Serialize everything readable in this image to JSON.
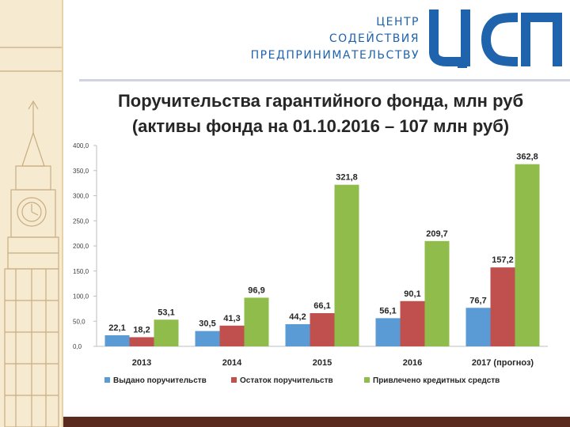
{
  "logo": {
    "line1": "ЦЕНТР",
    "line2": "СОДЕЙСТВИЯ",
    "line3": "ПРЕДПРИНИМАТЕЛЬСТВУ",
    "mark": "ЦСП"
  },
  "title": {
    "line1": "Поручительства гарантийного фонда, млн руб",
    "line2": "(активы фонда на 01.10.2016 – 107 млн руб)"
  },
  "colors": {
    "series1": "#5b9bd5",
    "series2": "#c0504d",
    "series3": "#8fbc4b",
    "brand": "#1f63ad"
  },
  "chart_data": {
    "type": "bar",
    "categories": [
      "2013",
      "2014",
      "2015",
      "2016",
      "2017 (прогноз)"
    ],
    "series": [
      {
        "name": "Выдано поручительств",
        "values": [
          22.1,
          30.5,
          44.2,
          56.1,
          76.7
        ],
        "labels": [
          "22,1",
          "30,5",
          "44,2",
          "56,1",
          "76,7"
        ]
      },
      {
        "name": "Остаток поручительств",
        "values": [
          18.2,
          41.3,
          66.1,
          90.1,
          157.2
        ],
        "labels": [
          "18,2",
          "41,3",
          "66,1",
          "90,1",
          "157,2"
        ]
      },
      {
        "name": "Привлечено кредитных средств",
        "values": [
          53.1,
          96.9,
          321.8,
          209.7,
          362.8
        ],
        "labels": [
          "53,1",
          "96,9",
          "321,8",
          "209,7",
          "362,8"
        ]
      }
    ],
    "yticks": [
      "0,0",
      "50,0",
      "100,0",
      "150,0",
      "200,0",
      "250,0",
      "300,0",
      "350,0",
      "400,0"
    ],
    "ylim": [
      0,
      400
    ],
    "grid": false,
    "legend": "bottom"
  }
}
